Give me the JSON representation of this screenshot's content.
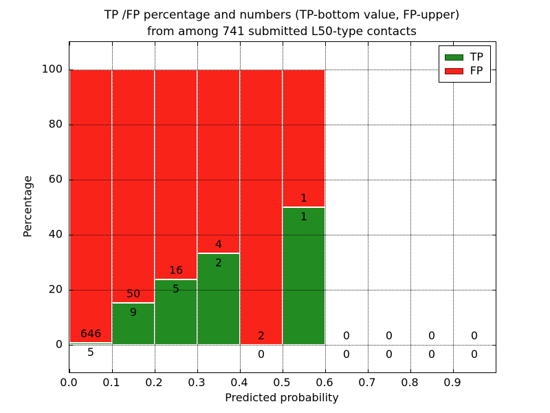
{
  "title": {
    "line1": "TP /FP percentage and numbers (TP-bottom value, FP-upper)",
    "line2": "from among 741 submitted L50-type contacts"
  },
  "chart_data": {
    "type": "bar",
    "stacked": true,
    "title": "TP /FP percentage and numbers (TP-bottom value, FP-upper) from among 741 submitted L50-type contacts",
    "xlabel": "Predicted probability",
    "ylabel": "Percentage",
    "xlim": [
      0.0,
      1.0
    ],
    "ylim": [
      -10,
      110
    ],
    "xtick_values": [
      0.0,
      0.1,
      0.2,
      0.3,
      0.4,
      0.5,
      0.6,
      0.7,
      0.8,
      0.9
    ],
    "xtick_labels": [
      "0.0",
      "0.1",
      "0.2",
      "0.3",
      "0.4",
      "0.5",
      "0.6",
      "0.7",
      "0.8",
      "0.9"
    ],
    "ytick_values": [
      0,
      20,
      40,
      60,
      80,
      100
    ],
    "ytick_labels": [
      "0",
      "20",
      "40",
      "60",
      "80",
      "100"
    ],
    "grid": "dotted-major-on-top",
    "bin_width": 0.1,
    "colors": {
      "tp": "#228b22",
      "fp": "#fa231a",
      "bar_edge": "#ffffff",
      "grid": "#000000"
    },
    "legend": {
      "position": "upper-right",
      "entries": [
        {
          "label": "TP",
          "color": "#228b22"
        },
        {
          "label": "FP",
          "color": "#fa231a"
        }
      ]
    },
    "bins": [
      {
        "range": "0.0-0.1",
        "x0": 0.0,
        "x1": 0.1,
        "tp_count": 5,
        "fp_count": 646,
        "tp_pct": 0.77,
        "fp_pct": 99.23
      },
      {
        "range": "0.1-0.2",
        "x0": 0.1,
        "x1": 0.2,
        "tp_count": 9,
        "fp_count": 50,
        "tp_pct": 15.25,
        "fp_pct": 84.75
      },
      {
        "range": "0.2-0.3",
        "x0": 0.2,
        "x1": 0.3,
        "tp_count": 5,
        "fp_count": 16,
        "tp_pct": 23.81,
        "fp_pct": 76.19
      },
      {
        "range": "0.3-0.4",
        "x0": 0.3,
        "x1": 0.4,
        "tp_count": 2,
        "fp_count": 4,
        "tp_pct": 33.33,
        "fp_pct": 66.67
      },
      {
        "range": "0.4-0.5",
        "x0": 0.4,
        "x1": 0.5,
        "tp_count": 0,
        "fp_count": 2,
        "tp_pct": 0,
        "fp_pct": 100
      },
      {
        "range": "0.5-0.6",
        "x0": 0.5,
        "x1": 0.6,
        "tp_count": 1,
        "fp_count": 1,
        "tp_pct": 50,
        "fp_pct": 50
      },
      {
        "range": "0.6-0.7",
        "x0": 0.6,
        "x1": 0.7,
        "tp_count": 0,
        "fp_count": 0,
        "tp_pct": 0,
        "fp_pct": 0
      },
      {
        "range": "0.7-0.8",
        "x0": 0.7,
        "x1": 0.8,
        "tp_count": 0,
        "fp_count": 0,
        "tp_pct": 0,
        "fp_pct": 0
      },
      {
        "range": "0.8-0.9",
        "x0": 0.8,
        "x1": 0.9,
        "tp_count": 0,
        "fp_count": 0,
        "tp_pct": 0,
        "fp_pct": 0
      },
      {
        "range": "0.9-1.0",
        "x0": 0.9,
        "x1": 1.0,
        "tp_count": 0,
        "fp_count": 0,
        "tp_pct": 0,
        "fp_pct": 0
      }
    ]
  }
}
